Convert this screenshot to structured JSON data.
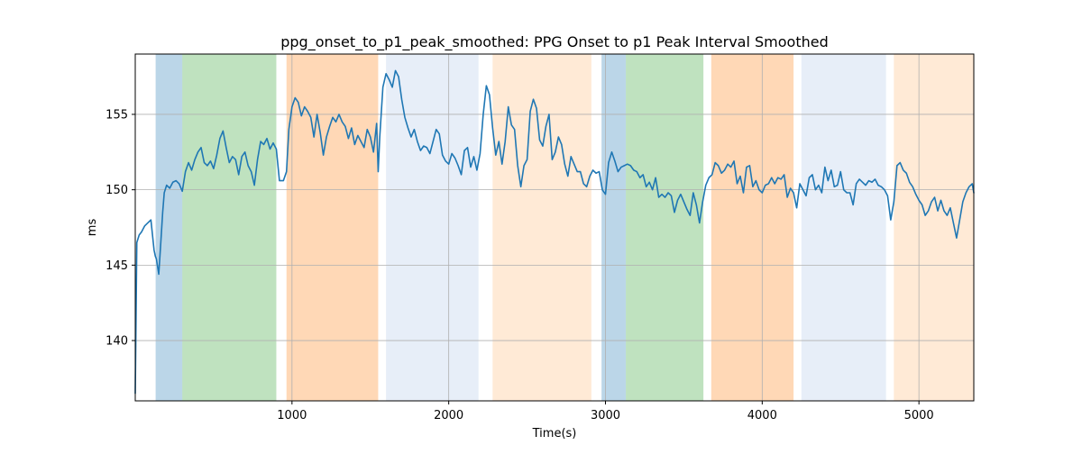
{
  "chart_data": {
    "type": "line",
    "title": "ppg_onset_to_p1_peak_smoothed: PPG Onset to p1 Peak Interval Smoothed",
    "xlabel": "Time(s)",
    "ylabel": "ms",
    "xlim": [
      0,
      5350
    ],
    "ylim": [
      136,
      159
    ],
    "xticks": [
      1000,
      2000,
      3000,
      4000,
      5000
    ],
    "yticks": [
      140,
      145,
      150,
      155
    ],
    "grid": true,
    "colors": {
      "line": "#1f77b4",
      "grid": "#b0b0b0",
      "blue": "#1f77b4",
      "green": "#2ca02c",
      "orange": "#ff7f0e",
      "lightblue": "#aec7e8",
      "peach": "#ffbb78"
    },
    "bands": [
      {
        "start": 130,
        "end": 300,
        "color": "blue",
        "opacity": 0.3
      },
      {
        "start": 300,
        "end": 900,
        "color": "green",
        "opacity": 0.3
      },
      {
        "start": 965,
        "end": 1550,
        "color": "orange",
        "opacity": 0.3
      },
      {
        "start": 1600,
        "end": 2190,
        "color": "lightblue",
        "opacity": 0.3
      },
      {
        "start": 2280,
        "end": 2910,
        "color": "peach",
        "opacity": 0.3
      },
      {
        "start": 2975,
        "end": 3130,
        "color": "blue",
        "opacity": 0.3
      },
      {
        "start": 3130,
        "end": 3625,
        "color": "green",
        "opacity": 0.3
      },
      {
        "start": 3675,
        "end": 4200,
        "color": "orange",
        "opacity": 0.3
      },
      {
        "start": 4250,
        "end": 4790,
        "color": "lightblue",
        "opacity": 0.3
      },
      {
        "start": 4840,
        "end": 5350,
        "color": "peach",
        "opacity": 0.3
      }
    ],
    "series": [
      {
        "x": [
          0,
          10,
          25,
          40,
          60,
          80,
          100,
          110,
          120,
          128,
          135,
          150,
          160,
          175,
          185,
          200,
          220,
          240,
          260,
          280,
          300,
          320,
          340,
          360,
          380,
          400,
          420,
          440,
          460,
          480,
          500,
          520,
          540,
          560,
          580,
          600,
          620,
          640,
          660,
          680,
          700,
          720,
          740,
          760,
          780,
          800,
          820,
          840,
          860,
          880,
          900,
          920,
          945,
          965,
          980,
          1000,
          1020,
          1040,
          1060,
          1080,
          1100,
          1120,
          1140,
          1160,
          1180,
          1200,
          1220,
          1240,
          1260,
          1280,
          1300,
          1320,
          1340,
          1360,
          1380,
          1400,
          1420,
          1440,
          1460,
          1480,
          1500,
          1520,
          1540,
          1550,
          1560,
          1580,
          1600,
          1620,
          1640,
          1660,
          1680,
          1700,
          1720,
          1740,
          1760,
          1780,
          1800,
          1820,
          1840,
          1860,
          1880,
          1900,
          1920,
          1940,
          1960,
          1980,
          2000,
          2020,
          2040,
          2060,
          2080,
          2100,
          2120,
          2140,
          2160,
          2180,
          2200,
          2220,
          2240,
          2260,
          2280,
          2300,
          2320,
          2340,
          2360,
          2380,
          2400,
          2420,
          2440,
          2460,
          2480,
          2500,
          2520,
          2540,
          2560,
          2580,
          2600,
          2620,
          2640,
          2660,
          2680,
          2700,
          2720,
          2740,
          2760,
          2780,
          2800,
          2820,
          2840,
          2860,
          2880,
          2900,
          2920,
          2940,
          2960,
          2980,
          3000,
          3020,
          3040,
          3060,
          3080,
          3100,
          3120,
          3140,
          3160,
          3180,
          3200,
          3220,
          3240,
          3260,
          3280,
          3300,
          3320,
          3340,
          3360,
          3380,
          3400,
          3420,
          3440,
          3460,
          3480,
          3500,
          3520,
          3540,
          3560,
          3580,
          3600,
          3620,
          3640,
          3660,
          3680,
          3700,
          3720,
          3740,
          3760,
          3780,
          3800,
          3820,
          3840,
          3860,
          3880,
          3900,
          3920,
          3940,
          3960,
          3980,
          4000,
          4020,
          4040,
          4060,
          4080,
          4100,
          4120,
          4140,
          4160,
          4180,
          4200,
          4220,
          4240,
          4260,
          4280,
          4300,
          4320,
          4340,
          4360,
          4380,
          4400,
          4420,
          4440,
          4460,
          4480,
          4500,
          4520,
          4540,
          4560,
          4580,
          4600,
          4620,
          4640,
          4660,
          4680,
          4700,
          4720,
          4740,
          4760,
          4780,
          4800,
          4820,
          4840,
          4860,
          4880,
          4900,
          4920,
          4940,
          4960,
          4980,
          5000,
          5020,
          5040,
          5060,
          5080,
          5100,
          5120,
          5140,
          5160,
          5180,
          5200,
          5220,
          5240,
          5260,
          5280,
          5300,
          5320,
          5340,
          5350
        ],
        "values": [
          136.5,
          146.5,
          147.0,
          147.2,
          147.6,
          147.8,
          148.0,
          147.0,
          146.0,
          145.6,
          145.4,
          144.4,
          146.0,
          148.5,
          149.8,
          150.3,
          150.1,
          150.5,
          150.6,
          150.4,
          149.9,
          151.2,
          151.8,
          151.3,
          152.0,
          152.5,
          152.8,
          151.8,
          151.6,
          151.9,
          151.4,
          152.3,
          153.4,
          153.9,
          152.8,
          151.8,
          152.2,
          152.0,
          151.0,
          152.2,
          152.5,
          151.6,
          151.2,
          150.3,
          152.0,
          153.2,
          153.0,
          153.4,
          152.7,
          153.1,
          152.7,
          150.6,
          150.6,
          151.2,
          154.0,
          155.5,
          156.1,
          155.8,
          154.9,
          155.5,
          155.2,
          154.8,
          153.5,
          155.0,
          153.8,
          152.3,
          153.5,
          154.2,
          154.8,
          154.5,
          155.0,
          154.5,
          154.2,
          153.4,
          154.1,
          153.0,
          153.6,
          153.2,
          152.8,
          154.0,
          153.5,
          152.5,
          154.4,
          151.2,
          153.5,
          156.8,
          157.7,
          157.3,
          156.8,
          157.9,
          157.5,
          156.0,
          154.8,
          154.1,
          153.5,
          154.0,
          153.2,
          152.6,
          152.9,
          152.8,
          152.4,
          153.2,
          154.0,
          153.7,
          152.3,
          151.9,
          151.7,
          152.4,
          152.1,
          151.6,
          151.0,
          152.6,
          152.8,
          151.5,
          152.2,
          151.3,
          152.4,
          155.0,
          156.9,
          156.3,
          154.1,
          152.3,
          153.2,
          151.7,
          153.2,
          155.5,
          154.3,
          154.0,
          151.6,
          150.2,
          151.6,
          152.0,
          155.2,
          156.0,
          155.4,
          153.3,
          152.9,
          154.2,
          155.0,
          152.0,
          152.5,
          153.5,
          153.0,
          151.7,
          150.9,
          152.2,
          151.7,
          151.2,
          151.2,
          150.4,
          150.2,
          150.9,
          151.3,
          151.1,
          151.2,
          150.0,
          149.7,
          151.8,
          152.5,
          151.9,
          151.2,
          151.5,
          151.6,
          151.7,
          151.6,
          151.3,
          151.2,
          150.8,
          151.0,
          150.2,
          150.5,
          150.0,
          150.8,
          149.5,
          149.7,
          149.5,
          149.8,
          149.6,
          148.5,
          149.3,
          149.7,
          149.2,
          148.7,
          148.3,
          149.8,
          149.0,
          147.8,
          149.2,
          150.3,
          150.8,
          151.0,
          151.8,
          151.6,
          151.1,
          151.3,
          151.7,
          151.5,
          151.9,
          150.4,
          150.9,
          149.8,
          151.5,
          151.6,
          150.2,
          150.6,
          150.0,
          149.8,
          150.3,
          150.4,
          150.8,
          150.4,
          150.8,
          150.7,
          151.0,
          149.5,
          150.1,
          149.8,
          148.8,
          150.4,
          150.0,
          149.6,
          150.8,
          151.0,
          150.0,
          150.3,
          149.8,
          151.5,
          150.6,
          151.3,
          150.2,
          150.3,
          151.2,
          150.0,
          149.8,
          149.8,
          149.0,
          150.4,
          150.7,
          150.5,
          150.3,
          150.6,
          150.5,
          150.7,
          150.3,
          150.2,
          150.0,
          149.6,
          148.0,
          149.2,
          151.6,
          151.8,
          151.3,
          151.1,
          150.5,
          150.2,
          149.7,
          149.3,
          149.0,
          148.3,
          148.6,
          149.2,
          149.5,
          148.6,
          149.3,
          148.6,
          148.3,
          148.8,
          147.8,
          146.8,
          148.0,
          149.2,
          149.8,
          150.2,
          150.4,
          149.8
        ]
      }
    ]
  }
}
